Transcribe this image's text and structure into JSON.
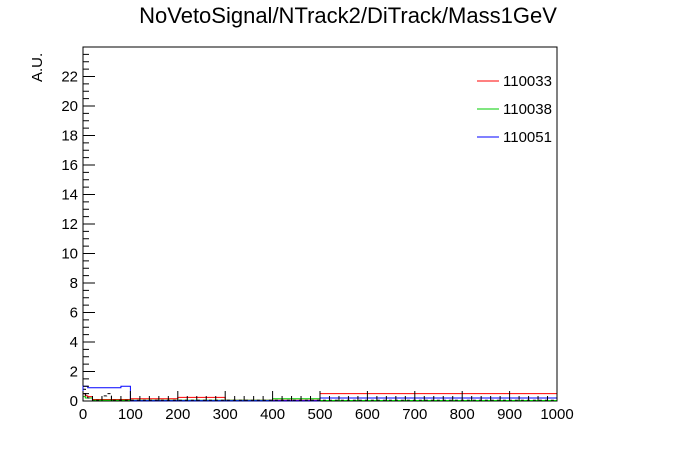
{
  "chart_data": {
    "type": "histogram",
    "title": "NoVetoSignal/NTrack2/DiTrack/Mass1GeV",
    "xlabel": "",
    "ylabel": "A.U.",
    "xlim": [
      0,
      1000
    ],
    "ylim": [
      0,
      24
    ],
    "x_ticks": [
      "0",
      "100",
      "200",
      "300",
      "400",
      "500",
      "600",
      "700",
      "800",
      "900",
      "1000"
    ],
    "y_ticks": [
      "0",
      "2",
      "4",
      "6",
      "8",
      "10",
      "12",
      "14",
      "16",
      "18",
      "20",
      "22"
    ],
    "legend_position": "top-right",
    "series": [
      {
        "name": "110033",
        "color": "#ff0000",
        "bins": [
          {
            "x0": 0,
            "x1": 5,
            "y": 0.5
          },
          {
            "x0": 5,
            "x1": 10,
            "y": 0.35
          },
          {
            "x0": 10,
            "x1": 20,
            "y": 0.3
          },
          {
            "x0": 20,
            "x1": 100,
            "y": 0.1
          },
          {
            "x0": 100,
            "x1": 200,
            "y": 0.15
          },
          {
            "x0": 200,
            "x1": 300,
            "y": 0.25
          },
          {
            "x0": 300,
            "x1": 500,
            "y": 0.05
          },
          {
            "x0": 500,
            "x1": 1000,
            "y": 0.5
          }
        ]
      },
      {
        "name": "110038",
        "color": "#00cc00",
        "bins": [
          {
            "x0": 0,
            "x1": 5,
            "y": 0.3
          },
          {
            "x0": 5,
            "x1": 20,
            "y": 0.2
          },
          {
            "x0": 20,
            "x1": 400,
            "y": 0.05
          },
          {
            "x0": 400,
            "x1": 500,
            "y": 0.15
          },
          {
            "x0": 500,
            "x1": 1000,
            "y": 0.03
          }
        ]
      },
      {
        "name": "110051",
        "color": "#0000ff",
        "bins": [
          {
            "x0": 0,
            "x1": 10,
            "y": 1.0
          },
          {
            "x0": 10,
            "x1": 80,
            "y": 0.9
          },
          {
            "x0": 80,
            "x1": 100,
            "y": 1.0
          },
          {
            "x0": 100,
            "x1": 500,
            "y": 0.02
          },
          {
            "x0": 500,
            "x1": 1000,
            "y": 0.2
          }
        ]
      },
      {
        "name": "",
        "color": "#000000",
        "style": "dashed",
        "bins": [
          {
            "x0": 0,
            "x1": 5,
            "y": 0.8
          },
          {
            "x0": 5,
            "x1": 10,
            "y": 0.4
          },
          {
            "x0": 10,
            "x1": 20,
            "y": 0.2
          },
          {
            "x0": 20,
            "x1": 40,
            "y": 0.05
          },
          {
            "x0": 40,
            "x1": 50,
            "y": 0.35
          },
          {
            "x0": 50,
            "x1": 60,
            "y": 0.5
          },
          {
            "x0": 60,
            "x1": 100,
            "y": 0.05
          },
          {
            "x0": 100,
            "x1": 1000,
            "y": 0.05
          }
        ]
      }
    ]
  }
}
